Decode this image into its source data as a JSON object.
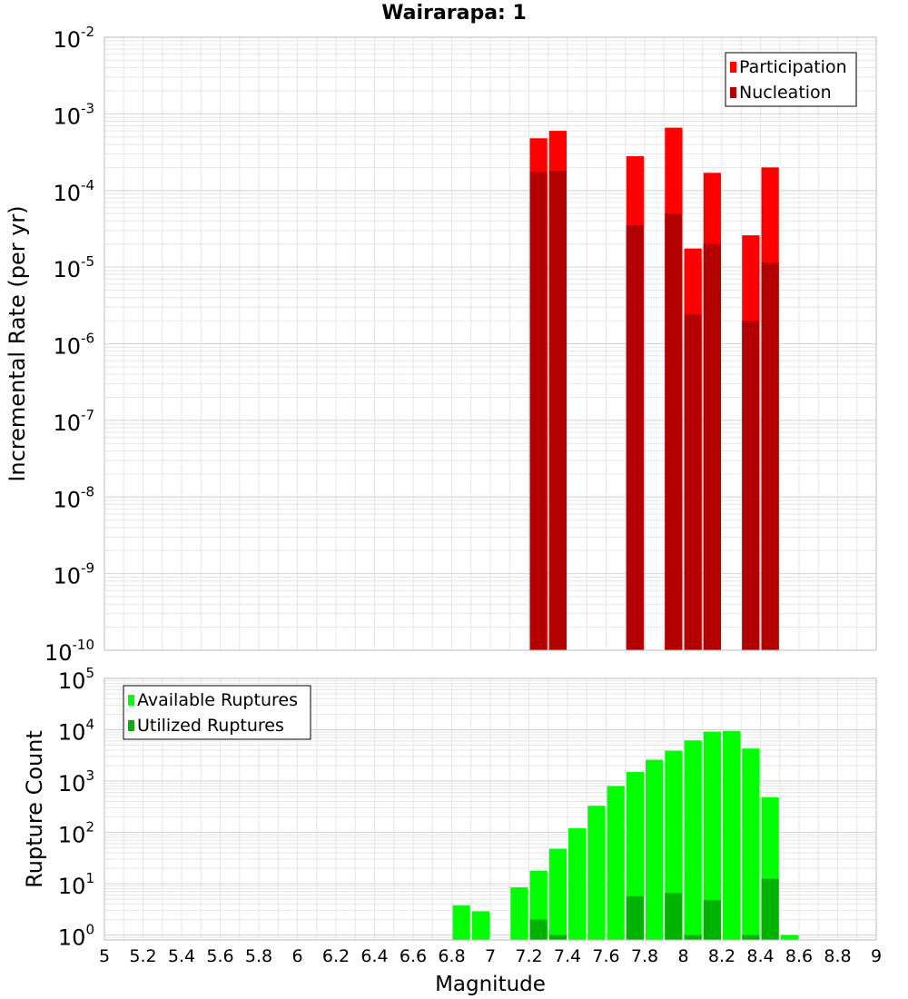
{
  "title": "Wairarapa: 1",
  "colors": {
    "participation": "#ff0000",
    "nucleation": "#b30000",
    "available": "#00ff00",
    "utilized": "#00b300",
    "grid": "#e6e6e6",
    "frame": "#bbbbbb"
  },
  "chart_data": [
    {
      "type": "bar",
      "panel": "top",
      "ylabel": "Incremental Rate (per yr)",
      "yscale": "log",
      "ylim": [
        1e-10,
        0.01
      ],
      "xlim": [
        5,
        9
      ],
      "grid": true,
      "legend_position": "top-right",
      "y_ticks": [
        {
          "base": "10",
          "exp": "-10",
          "value": 1e-10
        },
        {
          "base": "10",
          "exp": "-9",
          "value": 1e-09
        },
        {
          "base": "10",
          "exp": "-8",
          "value": 1e-08
        },
        {
          "base": "10",
          "exp": "-7",
          "value": 1e-07
        },
        {
          "base": "10",
          "exp": "-6",
          "value": 1e-06
        },
        {
          "base": "10",
          "exp": "-5",
          "value": 1e-05
        },
        {
          "base": "10",
          "exp": "-4",
          "value": 0.0001
        },
        {
          "base": "10",
          "exp": "-3",
          "value": 0.001
        },
        {
          "base": "10",
          "exp": "-2",
          "value": 0.01
        }
      ],
      "x": [
        7.25,
        7.35,
        7.75,
        7.95,
        8.05,
        8.15,
        8.35,
        8.45
      ],
      "series": [
        {
          "name": "Participation",
          "values": [
            0.00048,
            0.0006,
            0.00028,
            0.00066,
            1.75e-05,
            0.00017,
            2.6e-05,
            0.0002
          ]
        },
        {
          "name": "Nucleation",
          "values": [
            0.000175,
            0.00018,
            3.5e-05,
            5e-05,
            2.4e-06,
            2e-05,
            2e-06,
            1.15e-05
          ]
        }
      ]
    },
    {
      "type": "bar",
      "panel": "bottom",
      "xlabel": "Magnitude",
      "ylabel": "Rupture Count",
      "yscale": "log",
      "ylim": [
        0.8,
        100000.0
      ],
      "xlim": [
        5,
        9
      ],
      "grid": true,
      "legend_position": "top-left",
      "x_ticks": [
        "5",
        "5.2",
        "5.4",
        "5.6",
        "5.8",
        "6",
        "6.2",
        "6.4",
        "6.6",
        "6.8",
        "7",
        "7.2",
        "7.4",
        "7.6",
        "7.8",
        "8",
        "8.2",
        "8.4",
        "8.6",
        "8.8",
        "9"
      ],
      "y_ticks": [
        {
          "base": "10",
          "exp": "0",
          "value": 1
        },
        {
          "base": "10",
          "exp": "1",
          "value": 10
        },
        {
          "base": "10",
          "exp": "2",
          "value": 100
        },
        {
          "base": "10",
          "exp": "3",
          "value": 1000
        },
        {
          "base": "10",
          "exp": "4",
          "value": 10000
        },
        {
          "base": "10",
          "exp": "5",
          "value": 100000
        }
      ],
      "x": [
        6.85,
        6.95,
        7.15,
        7.25,
        7.35,
        7.45,
        7.55,
        7.65,
        7.75,
        7.85,
        7.95,
        8.05,
        8.15,
        8.25,
        8.35,
        8.45,
        8.55
      ],
      "series": [
        {
          "name": "Available Ruptures",
          "values": [
            3.8,
            2.9,
            8.5,
            18,
            48,
            120,
            330,
            800,
            1500,
            2600,
            3900,
            6200,
            9200,
            9500,
            4300,
            480,
            1
          ]
        },
        {
          "name": "Utilized Ruptures",
          "values": [
            0,
            0,
            0,
            2,
            1,
            0,
            0,
            0,
            5.7,
            0,
            6.6,
            1,
            4.8,
            0,
            1,
            12.5,
            0
          ]
        }
      ]
    }
  ]
}
